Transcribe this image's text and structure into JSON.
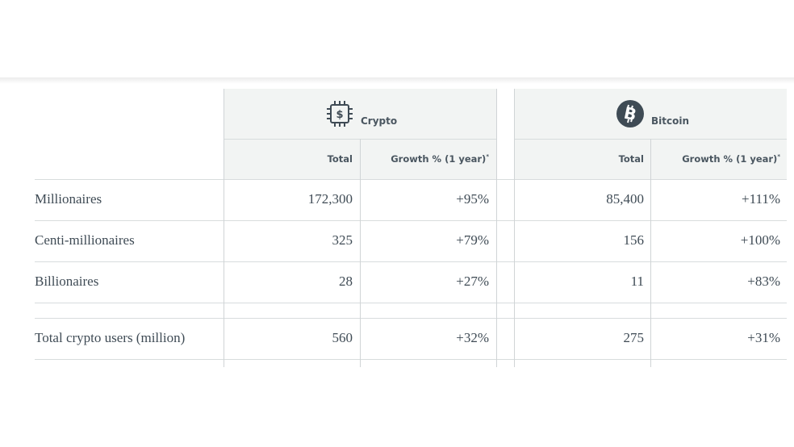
{
  "groups": {
    "crypto": {
      "label": "Crypto",
      "icon": "dollar-chip-icon"
    },
    "bitcoin": {
      "label": "Bitcoin",
      "icon": "bitcoin-icon"
    }
  },
  "columns": {
    "total": "Total",
    "growth": "Growth % (1 year)",
    "footnote_mark": "*"
  },
  "rows": [
    {
      "label": "Millionaires",
      "crypto_total": "172,300",
      "crypto_growth": "+95%",
      "btc_total": "85,400",
      "btc_growth": "+111%"
    },
    {
      "label": "Centi-millionaires",
      "crypto_total": "325",
      "crypto_growth": "+79%",
      "btc_total": "156",
      "btc_growth": "+100%"
    },
    {
      "label": "Billionaires",
      "crypto_total": "28",
      "crypto_growth": "+27%",
      "btc_total": "11",
      "btc_growth": "+83%"
    },
    {
      "label": "Total crypto users (million)",
      "crypto_total": "560",
      "crypto_growth": "+32%",
      "btc_total": "275",
      "btc_growth": "+31%"
    }
  ],
  "colors": {
    "text": "#3f4b55",
    "header_bg": "#f2f4f3",
    "bitcoin_badge": "#3f4b55",
    "rule": "#d8dcdd"
  }
}
